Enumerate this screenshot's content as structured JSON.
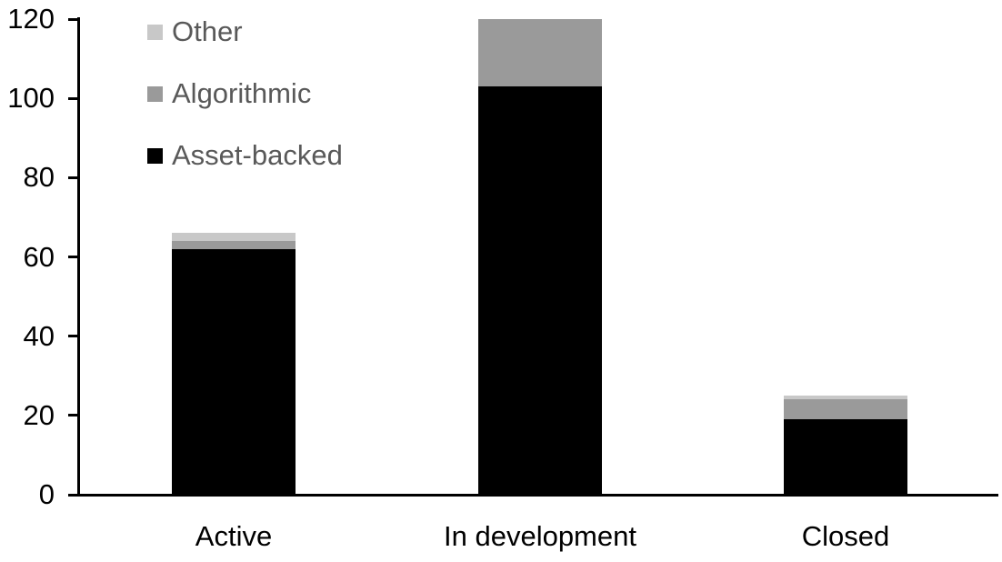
{
  "chart_data": {
    "type": "bar",
    "stacked": true,
    "title": "",
    "xlabel": "",
    "ylabel": "",
    "categories": [
      "Active",
      "In development",
      "Closed"
    ],
    "series": [
      {
        "name": "Asset-backed",
        "color": "#000000",
        "values": [
          62,
          103,
          19
        ]
      },
      {
        "name": "Algorithmic",
        "color": "#9a9a9a",
        "values": [
          2,
          17,
          5
        ]
      },
      {
        "name": "Other",
        "color": "#c8c8c8",
        "values": [
          2,
          0,
          1
        ]
      }
    ],
    "ylim": [
      0,
      120
    ],
    "yticks": [
      0,
      20,
      40,
      60,
      80,
      100,
      120
    ],
    "grid": false,
    "legend": {
      "position": "top-left",
      "order": [
        "Other",
        "Algorithmic",
        "Asset-backed"
      ],
      "text_color": "#595959"
    },
    "axis_color": "#000000",
    "background": "#ffffff"
  }
}
